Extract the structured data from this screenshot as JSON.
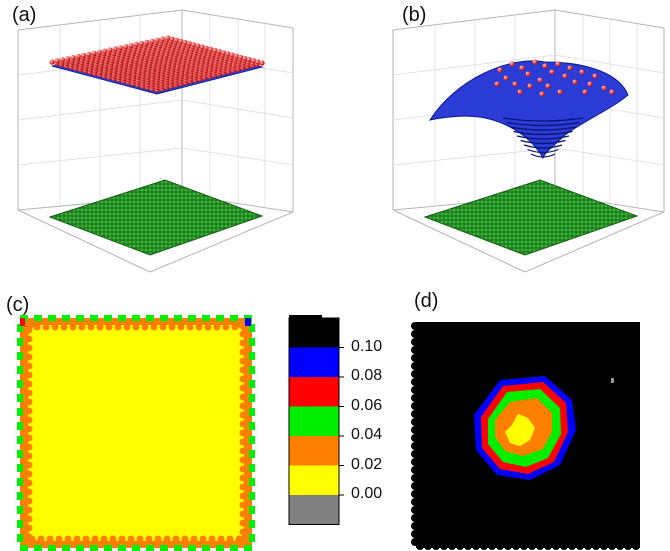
{
  "panels": {
    "a": {
      "label": "(a)"
    },
    "b": {
      "label": "(b)"
    },
    "c": {
      "label": "(c)"
    },
    "d": {
      "label": "(d)"
    }
  },
  "colorbar": {
    "ticks": [
      "0.10",
      "0.08",
      "0.06",
      "0.04",
      "0.02",
      "0.00"
    ],
    "colors": [
      "#000000",
      "#0000ff",
      "#ff0000",
      "#00ee00",
      "#ff8000",
      "#ffff00",
      "#808080"
    ]
  },
  "colors": {
    "red_sphere": "#f04545",
    "blue_sphere": "#2a3bd6",
    "green_sphere": "#1f8a1f",
    "yellow": "#ffff00",
    "orange": "#ff8000",
    "green": "#00ee00",
    "red": "#ff0000",
    "blue": "#0000ff",
    "black": "#000000"
  }
}
